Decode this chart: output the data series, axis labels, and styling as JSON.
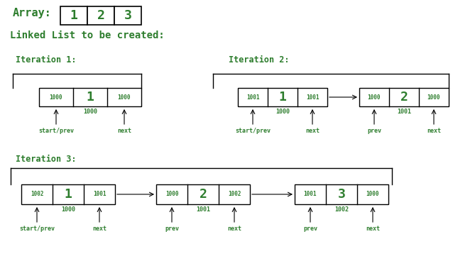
{
  "bg_color": "#ffffff",
  "green": "#2d7d2d",
  "black": "#000000",
  "title_array": "Array:",
  "title_ll": "Linked List to be created:",
  "array_values": [
    "1",
    "2",
    "3"
  ],
  "iter1_title": "Iteration 1:",
  "iter2_title": "Iteration 2:",
  "iter3_title": "Iteration 3:",
  "figw": 6.38,
  "figh": 3.92,
  "dpi": 100
}
